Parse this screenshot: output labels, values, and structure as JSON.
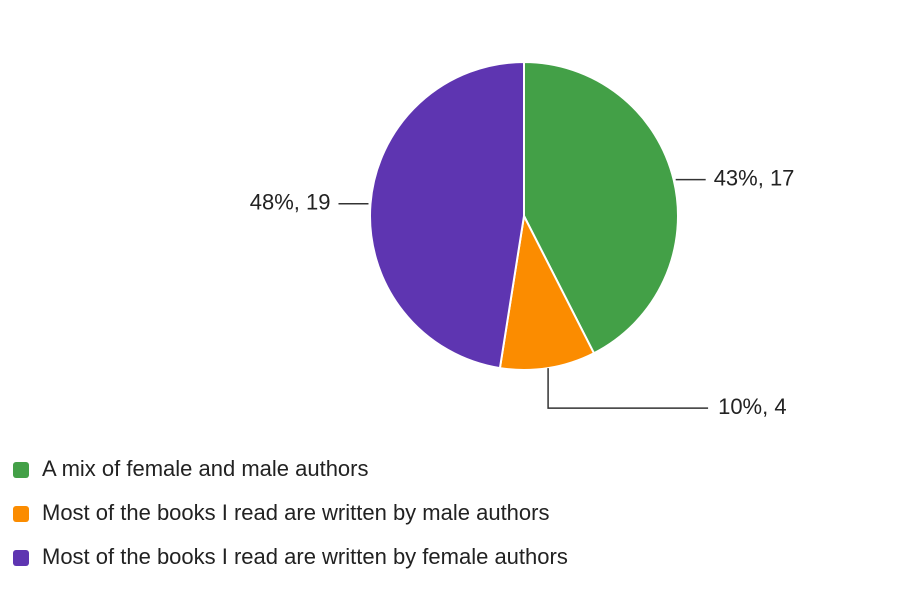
{
  "chart_data": {
    "type": "pie",
    "categories": [
      "A mix of female and male authors",
      "Most of the books I read are written by male authors",
      "Most of the books I read are written by female authors"
    ],
    "values": [
      17,
      4,
      19
    ],
    "value_labels": [
      "43%, 17",
      "10%, 4",
      "48%, 19"
    ],
    "colors": [
      "#43a047",
      "#fb8c00",
      "#5e35b1"
    ],
    "legend": "bottom"
  }
}
